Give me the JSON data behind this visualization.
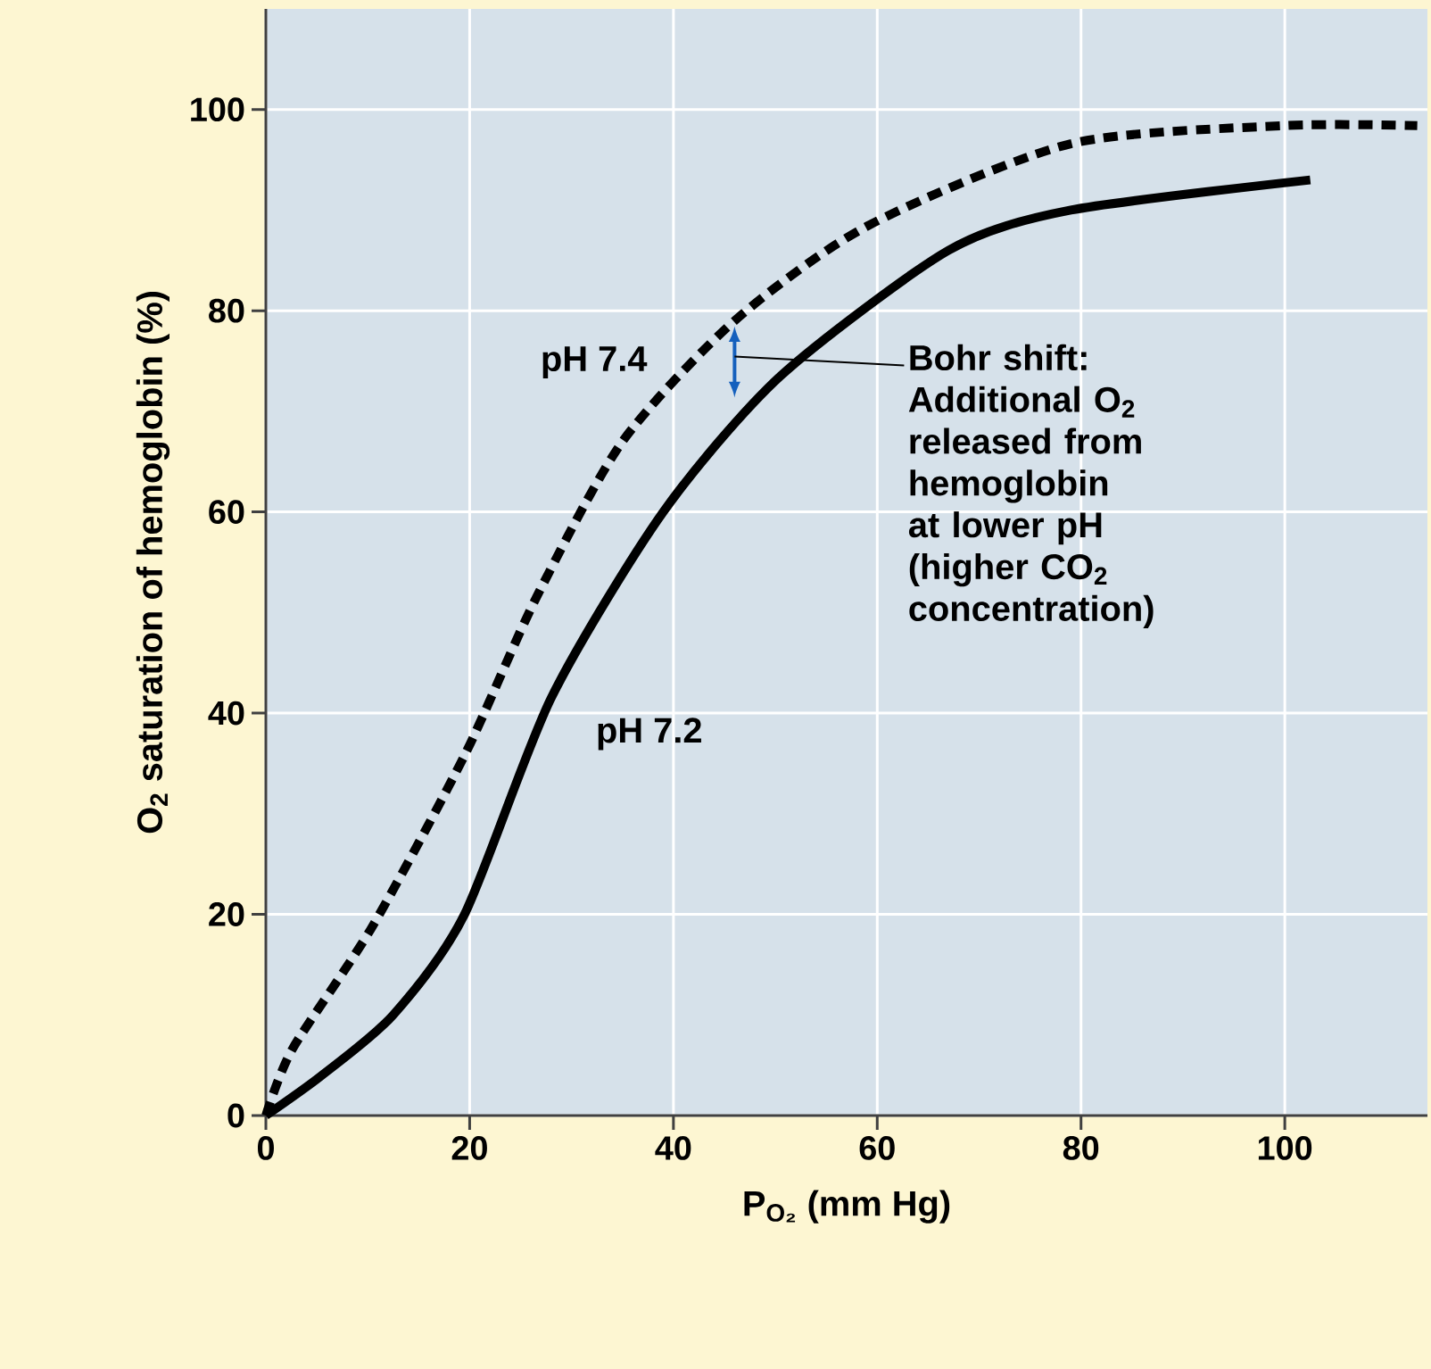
{
  "chart_data": {
    "type": "line",
    "xlabel": "P$_{O₂}$ (mm Hg)",
    "ylabel": "O$_{2}$ saturation of hemoglobin (%)",
    "xlim": [
      0,
      114
    ],
    "ylim": [
      0,
      110
    ],
    "xticks": [
      0,
      20,
      40,
      60,
      80,
      100
    ],
    "yticks": [
      0,
      20,
      40,
      60,
      80,
      100
    ],
    "grid": true,
    "marker": "none",
    "series": [
      {
        "name": "pH 7.4",
        "color": "#000000",
        "line_style": "dashed",
        "x": [
          0,
          2.6,
          10.4,
          19.5,
          26.5,
          35,
          46,
          59,
          79,
          100,
          113
        ],
        "values": [
          0,
          6.6,
          18.7,
          35.8,
          51.4,
          67,
          79,
          88.4,
          96.6,
          98.4,
          98.4
        ]
      },
      {
        "name": "pH 7.2",
        "color": "#000000",
        "line_style": "solid",
        "x": [
          0,
          5.5,
          12.5,
          19.5,
          28,
          39,
          50.5,
          67,
          79,
          102.5
        ],
        "values": [
          0,
          4,
          10,
          20,
          41.5,
          60,
          73.5,
          86,
          90,
          93
        ]
      }
    ],
    "annotations": [
      "Bohr shift: Additional O$_{2}$ released from hemoglobin at lower pH (higher CO$_{2}$ concentration)"
    ]
  }
}
